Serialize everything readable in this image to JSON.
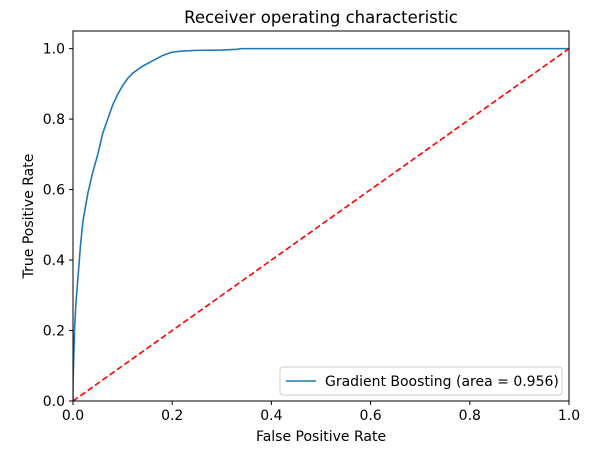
{
  "chart_data": {
    "type": "line",
    "title": "Receiver operating characteristic",
    "xlabel": "False Positive Rate",
    "ylabel": "True Positive Rate",
    "xlim": [
      0.0,
      1.0
    ],
    "ylim": [
      0.0,
      1.05
    ],
    "x_ticks": [
      "0.0",
      "0.2",
      "0.4",
      "0.6",
      "0.8",
      "1.0"
    ],
    "y_ticks": [
      "0.0",
      "0.2",
      "0.4",
      "0.6",
      "0.8",
      "1.0"
    ],
    "grid": false,
    "legend_position": "lower-right",
    "series": [
      {
        "name": "Gradient Boosting (area = 0.956)",
        "color": "#1f77b4",
        "style": "solid",
        "x": [
          0.0,
          0.0,
          0.003,
          0.006,
          0.01,
          0.015,
          0.02,
          0.025,
          0.03,
          0.04,
          0.05,
          0.06,
          0.07,
          0.08,
          0.09,
          0.1,
          0.11,
          0.12,
          0.14,
          0.16,
          0.18,
          0.2,
          0.22,
          0.25,
          0.3,
          0.33,
          0.34,
          0.4,
          0.5,
          0.6,
          0.7,
          0.8,
          0.9,
          1.0
        ],
        "y": [
          0.0,
          0.05,
          0.2,
          0.28,
          0.35,
          0.44,
          0.51,
          0.55,
          0.59,
          0.65,
          0.7,
          0.76,
          0.8,
          0.84,
          0.87,
          0.895,
          0.915,
          0.93,
          0.95,
          0.965,
          0.98,
          0.99,
          0.993,
          0.995,
          0.996,
          0.998,
          1.0,
          1.0,
          1.0,
          1.0,
          1.0,
          1.0,
          1.0,
          1.0
        ]
      },
      {
        "name": "",
        "color": "#ff0000",
        "style": "dashed",
        "x": [
          0.0,
          1.0
        ],
        "y": [
          0.0,
          1.0
        ]
      }
    ]
  }
}
